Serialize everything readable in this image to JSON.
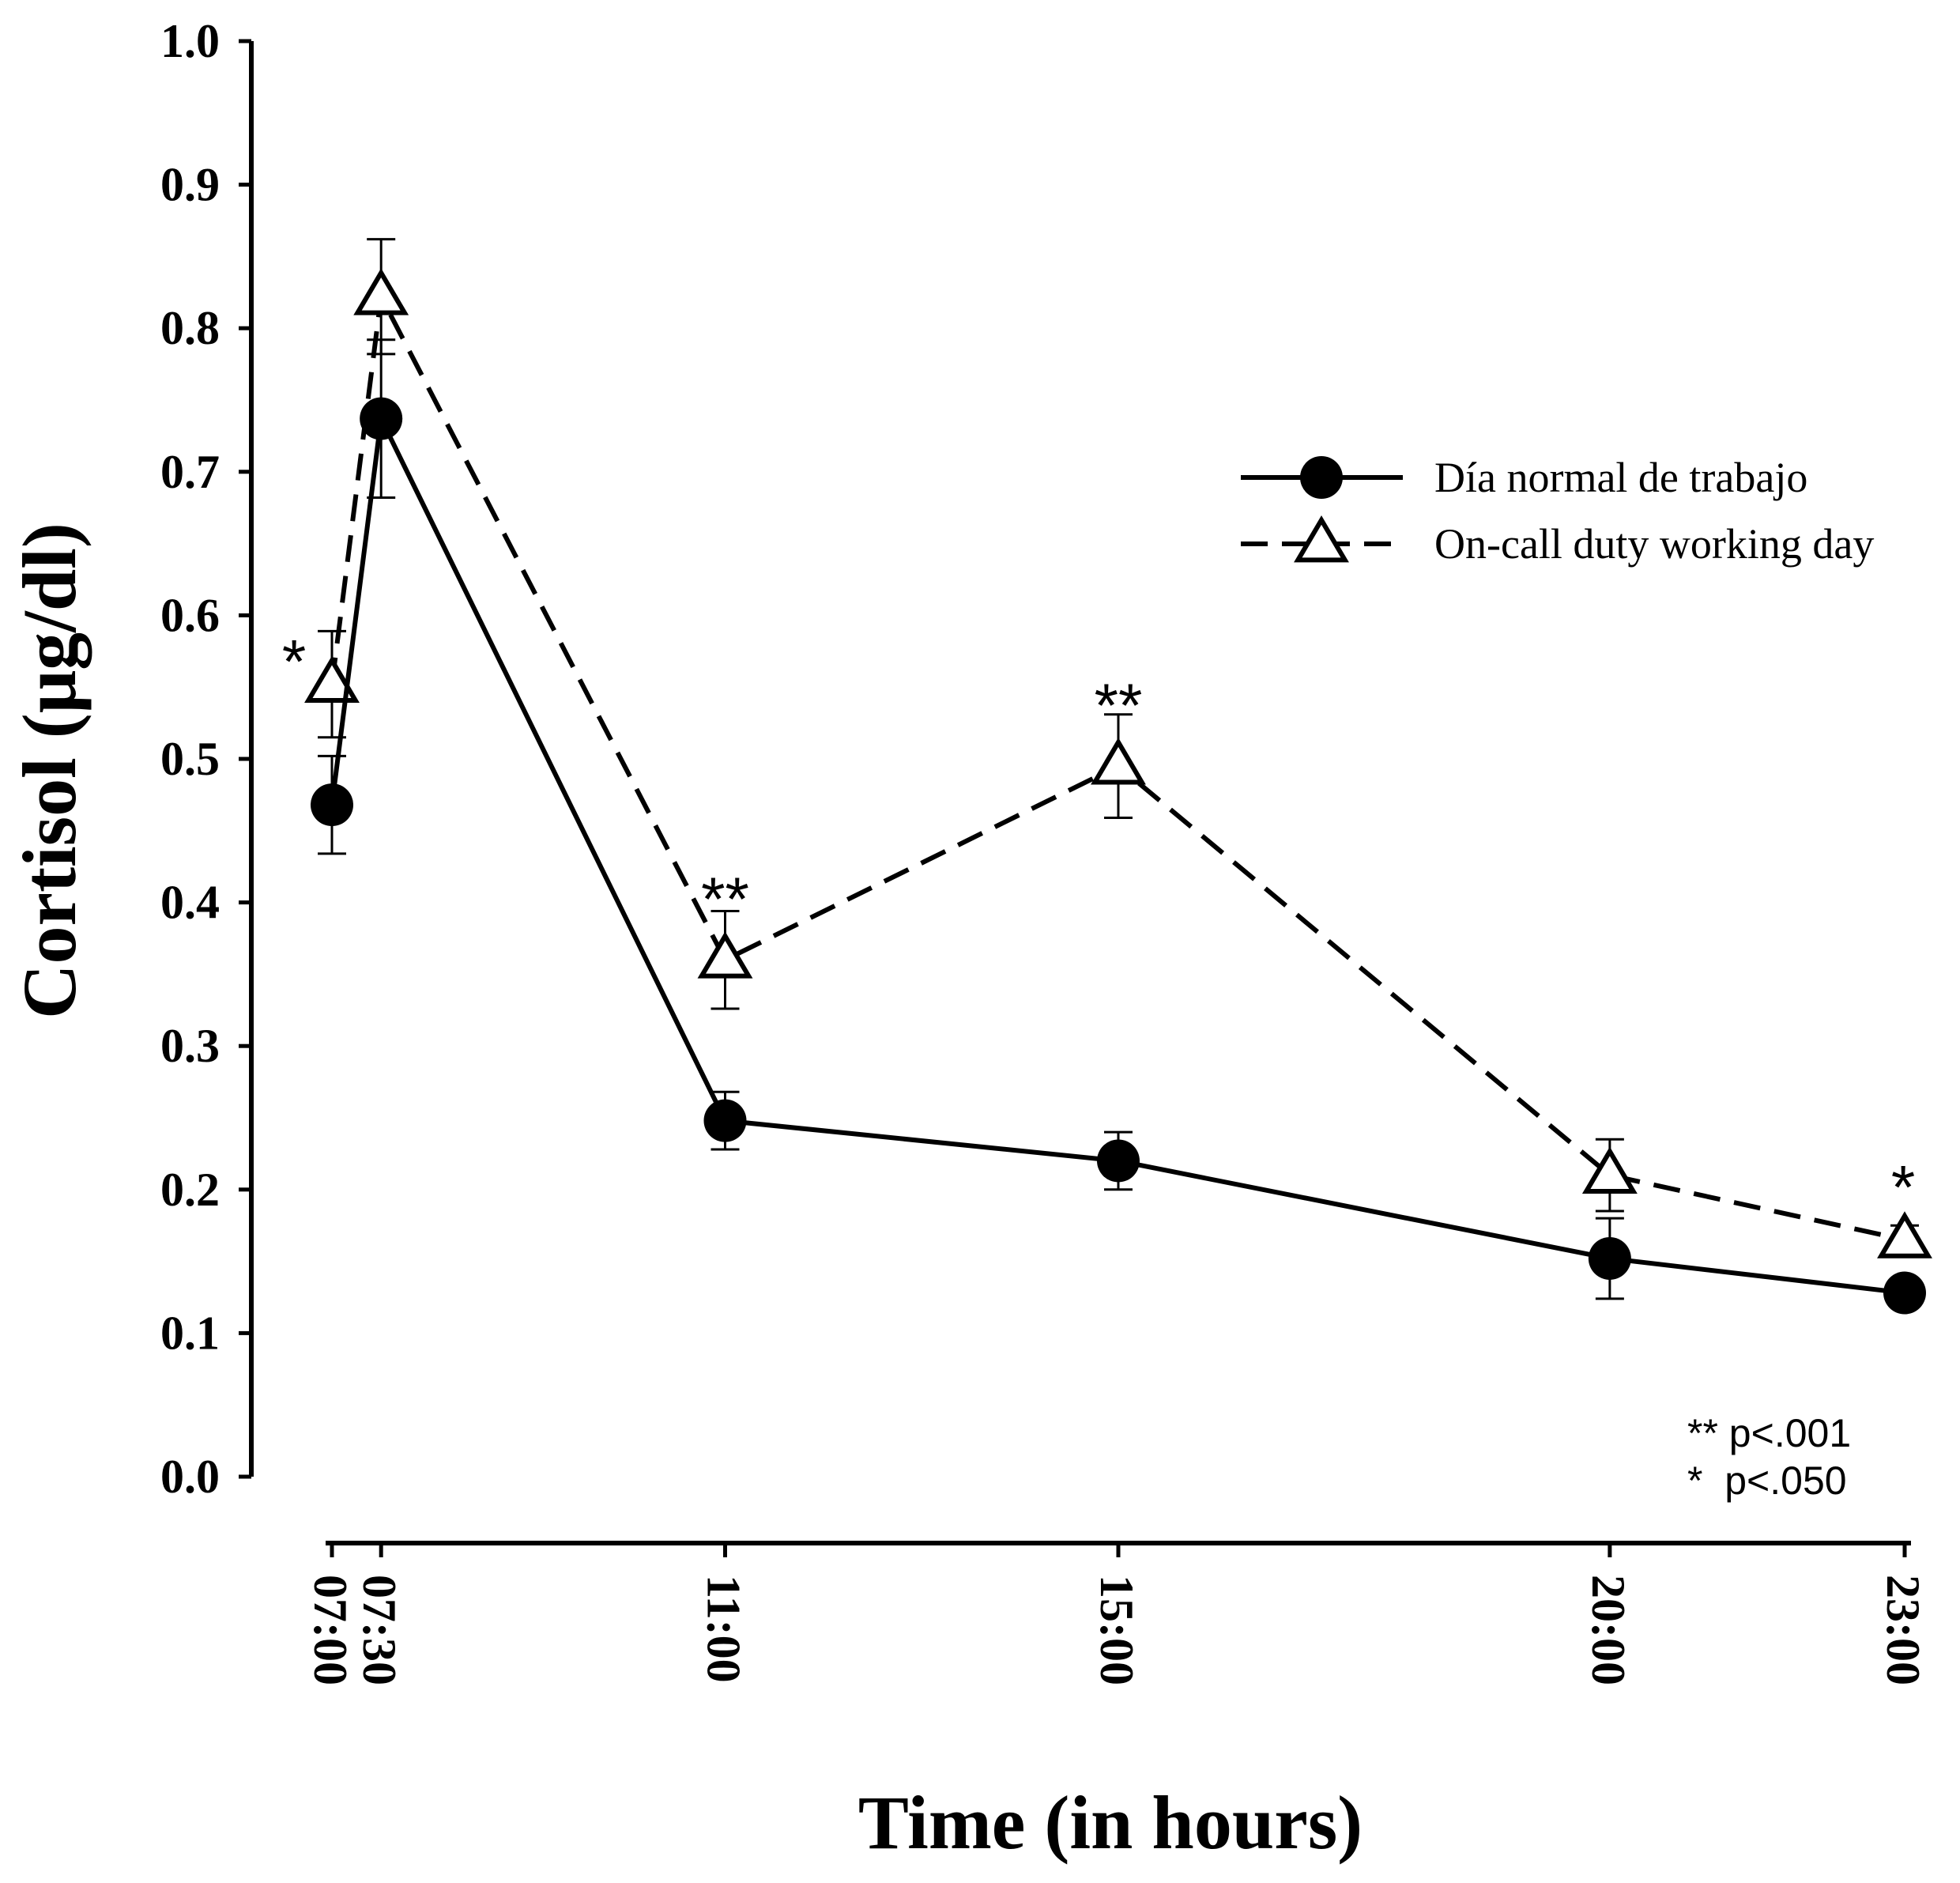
{
  "chart_data": {
    "type": "line",
    "title": "",
    "xlabel": "Time (in hours)",
    "ylabel": "Cortisol (μg/dl)",
    "ylim": [
      0.0,
      1.0
    ],
    "y_ticks": [
      "0.0",
      "0.1",
      "0.2",
      "0.3",
      "0.4",
      "0.5",
      "0.6",
      "0.7",
      "0.8",
      "0.9",
      "1.0"
    ],
    "x_hours": [
      7.0,
      7.5,
      11.0,
      15.0,
      20.0,
      23.0
    ],
    "categories": [
      "07:00",
      "07:30",
      "11:00",
      "15:00",
      "20:00",
      "23:00"
    ],
    "series": [
      {
        "name": "Día normal de trabajo",
        "marker": "filled-circle",
        "line": "solid",
        "values": [
          0.468,
          0.737,
          0.248,
          0.22,
          0.152,
          0.128
        ],
        "errors": [
          0.034,
          0.055,
          0.02,
          0.02,
          0.028,
          0.01
        ]
      },
      {
        "name": "On-call duty working day",
        "marker": "open-triangle",
        "line": "dashed",
        "values": [
          0.552,
          0.822,
          0.36,
          0.495,
          0.21,
          0.165
        ],
        "errors": [
          0.037,
          0.04,
          0.034,
          0.036,
          0.025,
          0.01
        ]
      }
    ],
    "significance": [
      {
        "category": "07:00",
        "label": "*"
      },
      {
        "category": "11:00",
        "label": "**"
      },
      {
        "category": "15:00",
        "label": "**"
      },
      {
        "category": "23:00",
        "label": "*"
      }
    ],
    "significance_legend": [
      "** p<.001",
      "*  p<.050"
    ],
    "legend_position": "top-right",
    "grid": false
  }
}
